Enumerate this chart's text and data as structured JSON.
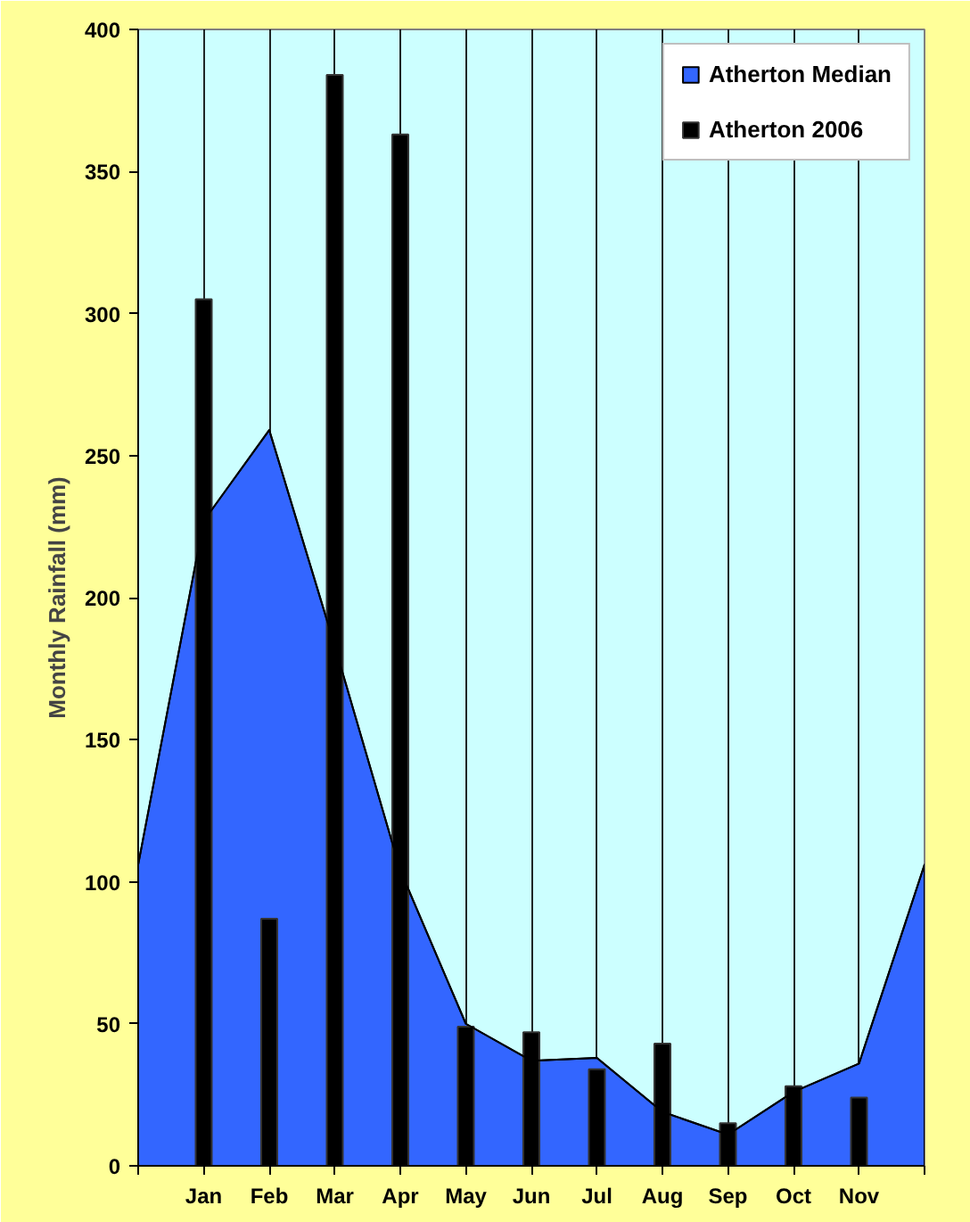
{
  "chart_data": {
    "type": "area",
    "ylabel": "Monthly Rainfall (mm)",
    "categories": [
      null,
      "Jan",
      "Feb",
      "Mar",
      "Apr",
      "May",
      "Jun",
      "Jul",
      "Aug",
      "Sep",
      "Oct",
      "Nov",
      null
    ],
    "ylim": [
      0,
      400
    ],
    "yticks": [
      0,
      50,
      100,
      150,
      200,
      250,
      300,
      350,
      400
    ],
    "grid": "x",
    "legend": "top right",
    "series": [
      {
        "name": "Atherton Median",
        "color": "#3366ff",
        "values": [
          106,
          227,
          259,
          183,
          104,
          50,
          37,
          38,
          19,
          11,
          26,
          36,
          106
        ]
      },
      {
        "name": "Atherton 2006",
        "type": "bar",
        "color": "#000000",
        "values": [
          null,
          305,
          87,
          384,
          363,
          49,
          47,
          34,
          43,
          15,
          28,
          24,
          null
        ]
      }
    ]
  }
}
